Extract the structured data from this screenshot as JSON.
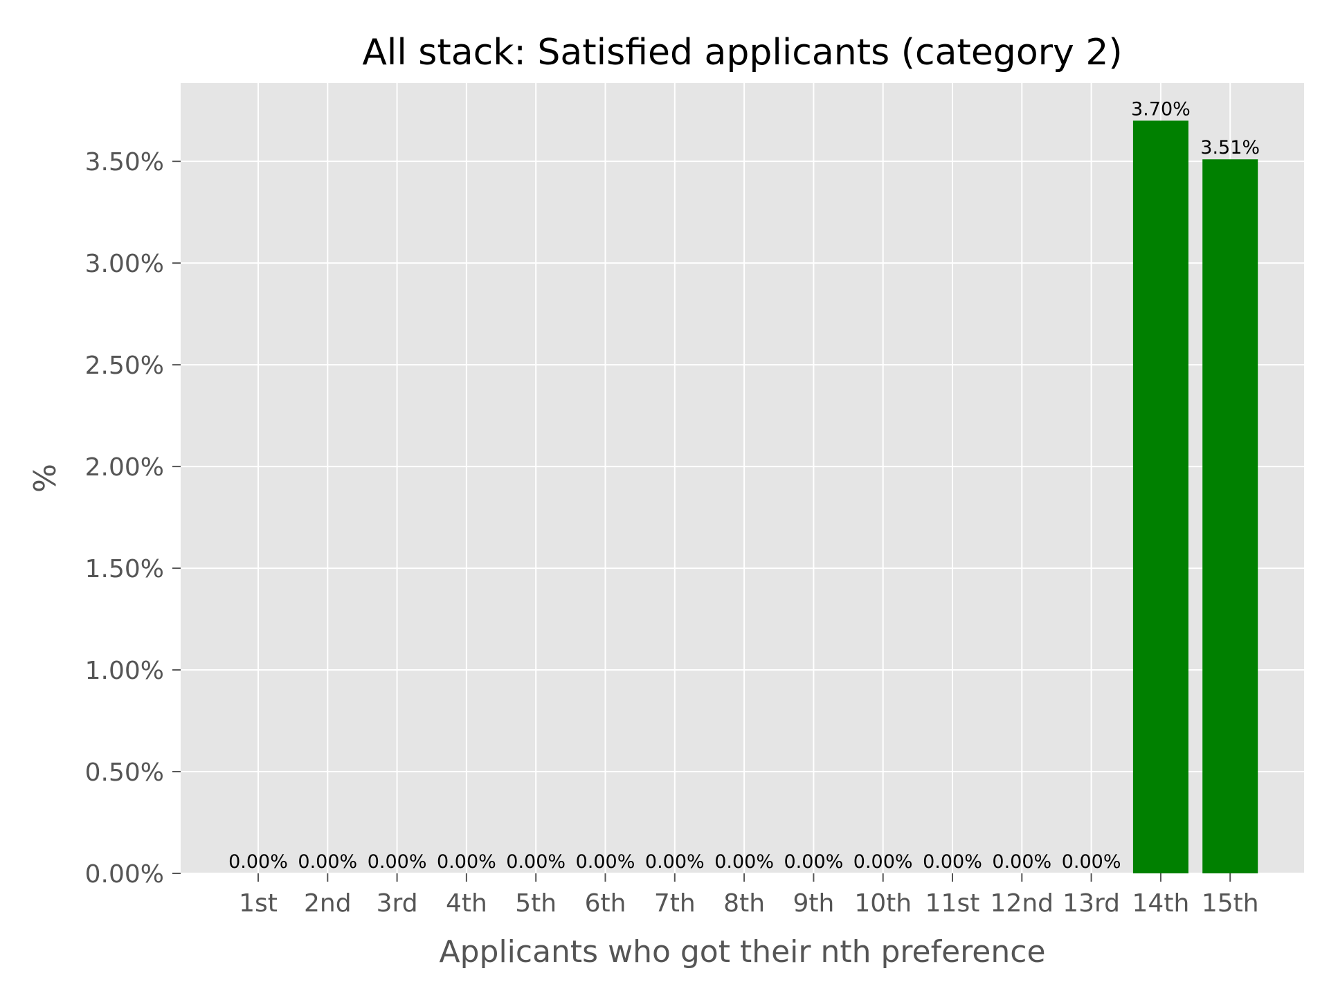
{
  "colors": {
    "plot_background": "#e5e5e5",
    "grid": "#ffffff",
    "bar": "#008000",
    "tick_text": "#555555",
    "title_text": "#000000"
  },
  "chart_data": {
    "type": "bar",
    "title": "All stack: Satisfied applicants (category 2)",
    "xlabel": "Applicants who got their nth preference",
    "ylabel": "%",
    "categories": [
      "1st",
      "2nd",
      "3rd",
      "4th",
      "5th",
      "6th",
      "7th",
      "8th",
      "9th",
      "10th",
      "11st",
      "12nd",
      "13rd",
      "14th",
      "15th"
    ],
    "values": [
      0.0,
      0.0,
      0.0,
      0.0,
      0.0,
      0.0,
      0.0,
      0.0,
      0.0,
      0.0,
      0.0,
      0.0,
      0.0,
      3.7,
      3.51
    ],
    "data_labels": [
      "0.00%",
      "0.00%",
      "0.00%",
      "0.00%",
      "0.00%",
      "0.00%",
      "0.00%",
      "0.00%",
      "0.00%",
      "0.00%",
      "0.00%",
      "0.00%",
      "0.00%",
      "3.70%",
      "3.51%"
    ],
    "yticks": [
      0,
      0.5,
      1.0,
      1.5,
      2.0,
      2.5,
      3.0,
      3.5
    ],
    "ytick_labels": [
      "0.00%",
      "0.50%",
      "1.00%",
      "1.50%",
      "2.00%",
      "2.50%",
      "3.00%",
      "3.50%"
    ],
    "ylim": [
      0,
      3.885
    ],
    "grid": true,
    "legend": "none"
  }
}
